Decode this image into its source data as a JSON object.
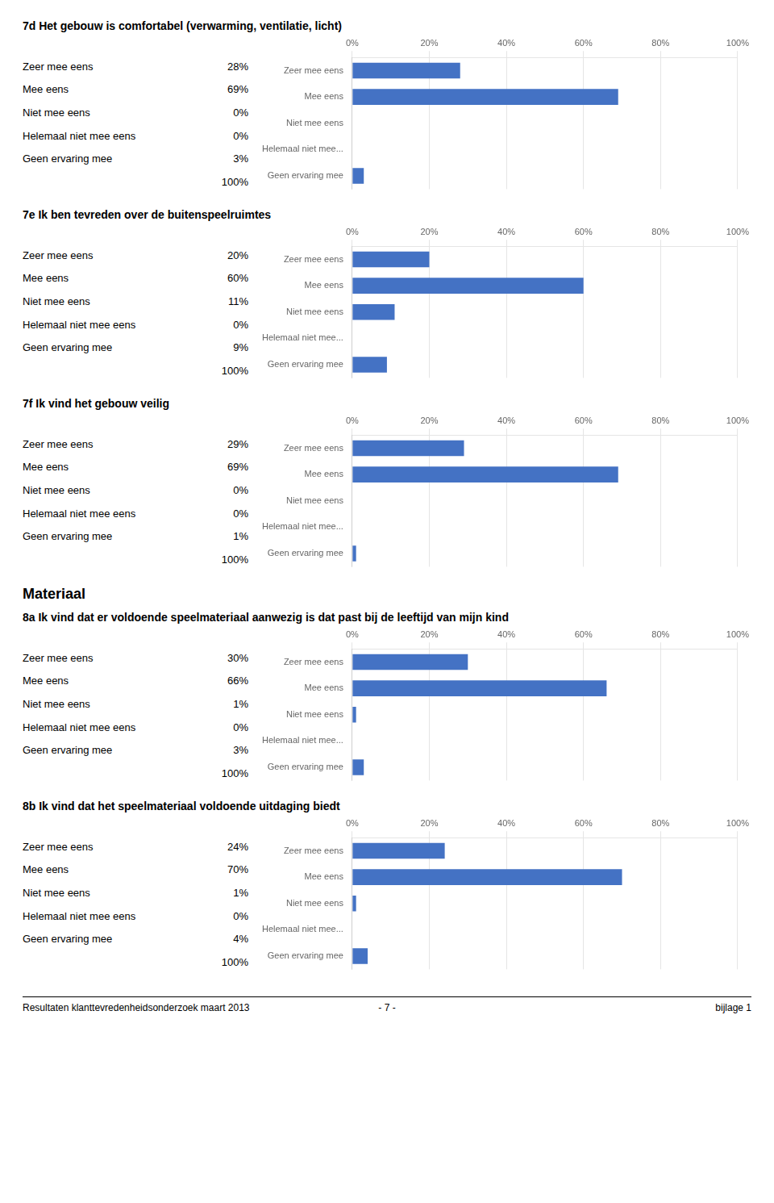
{
  "chart_data": [
    {
      "type": "bar",
      "orientation": "horizontal",
      "title": "7d Het gebouw is comfortabel (verwarming, ventilatie, licht)",
      "annotations": [
        "Zeer mee eens",
        "Mee eens",
        "Niet mee eens",
        "Helemaal niet mee eens",
        "Geen ervaring mee"
      ],
      "categories": [
        "Zeer mee eens",
        "Mee eens",
        "Niet mee eens",
        "Helemaal niet mee...",
        "Geen ervaring mee"
      ],
      "values": [
        28,
        69,
        0,
        0,
        3
      ],
      "value_labels": [
        "28%",
        "69%",
        "0%",
        "0%",
        "3%"
      ],
      "total": {
        "value": 100,
        "label": "100%"
      },
      "color": "#4472C4",
      "xlim": [
        0,
        100
      ],
      "xticks": [
        {
          "value": 0,
          "label": "0%"
        },
        {
          "value": 20,
          "label": "20%"
        },
        {
          "value": 40,
          "label": "40%"
        },
        {
          "value": 60,
          "label": "60%"
        },
        {
          "value": 80,
          "label": "80%"
        },
        {
          "value": 100,
          "label": "100%"
        }
      ],
      "grid": true
    },
    {
      "type": "bar",
      "orientation": "horizontal",
      "title": "7e Ik ben tevreden over de buitenspeelruimtes",
      "annotations": [
        "Zeer mee eens",
        "Mee eens",
        "Niet mee eens",
        "Helemaal niet mee eens",
        "Geen ervaring mee"
      ],
      "categories": [
        "Zeer mee eens",
        "Mee eens",
        "Niet mee eens",
        "Helemaal niet mee...",
        "Geen ervaring mee"
      ],
      "values": [
        20,
        60,
        11,
        0,
        9
      ],
      "value_labels": [
        "20%",
        "60%",
        "11%",
        "0%",
        "9%"
      ],
      "total": {
        "value": 100,
        "label": "100%"
      },
      "color": "#4472C4",
      "xlim": [
        0,
        100
      ],
      "xticks": [
        {
          "value": 0,
          "label": "0%"
        },
        {
          "value": 20,
          "label": "20%"
        },
        {
          "value": 40,
          "label": "40%"
        },
        {
          "value": 60,
          "label": "60%"
        },
        {
          "value": 80,
          "label": "80%"
        },
        {
          "value": 100,
          "label": "100%"
        }
      ],
      "grid": true
    },
    {
      "type": "bar",
      "orientation": "horizontal",
      "title": "7f Ik vind het gebouw veilig",
      "annotations": [
        "Zeer mee eens",
        "Mee eens",
        "Niet mee eens",
        "Helemaal niet mee eens",
        "Geen ervaring mee"
      ],
      "categories": [
        "Zeer mee eens",
        "Mee eens",
        "Niet mee eens",
        "Helemaal niet mee...",
        "Geen ervaring mee"
      ],
      "values": [
        29,
        69,
        0,
        0,
        1
      ],
      "value_labels": [
        "29%",
        "69%",
        "0%",
        "0%",
        "1%"
      ],
      "total": {
        "value": 100,
        "label": "100%"
      },
      "color": "#4472C4",
      "xlim": [
        0,
        100
      ],
      "xticks": [
        {
          "value": 0,
          "label": "0%"
        },
        {
          "value": 20,
          "label": "20%"
        },
        {
          "value": 40,
          "label": "40%"
        },
        {
          "value": 60,
          "label": "60%"
        },
        {
          "value": 80,
          "label": "80%"
        },
        {
          "value": 100,
          "label": "100%"
        }
      ],
      "grid": true
    },
    {
      "type": "bar",
      "orientation": "horizontal",
      "subtitle": "Materiaal",
      "title": "8a Ik vind dat er voldoende speelmateriaal aanwezig is dat past bij de leeftijd van mijn kind",
      "annotations": [
        "Zeer mee eens",
        "Mee eens",
        "Niet mee eens",
        "Helemaal niet mee eens",
        "Geen ervaring mee"
      ],
      "categories": [
        "Zeer mee eens",
        "Mee eens",
        "Niet mee eens",
        "Helemaal niet mee...",
        "Geen ervaring mee"
      ],
      "values": [
        30,
        66,
        1,
        0,
        3
      ],
      "value_labels": [
        "30%",
        "66%",
        "1%",
        "0%",
        "3%"
      ],
      "total": {
        "value": 100,
        "label": "100%"
      },
      "color": "#4472C4",
      "xlim": [
        0,
        100
      ],
      "xticks": [
        {
          "value": 0,
          "label": "0%"
        },
        {
          "value": 20,
          "label": "20%"
        },
        {
          "value": 40,
          "label": "40%"
        },
        {
          "value": 60,
          "label": "60%"
        },
        {
          "value": 80,
          "label": "80%"
        },
        {
          "value": 100,
          "label": "100%"
        }
      ],
      "grid": true
    },
    {
      "type": "bar",
      "orientation": "horizontal",
      "title": "8b Ik vind dat het speelmateriaal voldoende uitdaging biedt",
      "annotations": [
        "Zeer mee eens",
        "Mee eens",
        "Niet mee eens",
        "Helemaal niet mee eens",
        "Geen ervaring mee"
      ],
      "categories": [
        "Zeer mee eens",
        "Mee eens",
        "Niet mee eens",
        "Helemaal niet mee...",
        "Geen ervaring mee"
      ],
      "values": [
        24,
        70,
        1,
        0,
        4
      ],
      "value_labels": [
        "24%",
        "70%",
        "1%",
        "0%",
        "4%"
      ],
      "total": {
        "value": 100,
        "label": "100%"
      },
      "color": "#4472C4",
      "xlim": [
        0,
        100
      ],
      "xticks": [
        {
          "value": 0,
          "label": "0%"
        },
        {
          "value": 20,
          "label": "20%"
        },
        {
          "value": 40,
          "label": "40%"
        },
        {
          "value": 60,
          "label": "60%"
        },
        {
          "value": 80,
          "label": "80%"
        },
        {
          "value": 100,
          "label": "100%"
        }
      ],
      "grid": true
    }
  ],
  "footer": [
    "Resultaten klanttevredenheidsonderzoek maart 2013",
    "- 7 -",
    "bijlage 1"
  ]
}
